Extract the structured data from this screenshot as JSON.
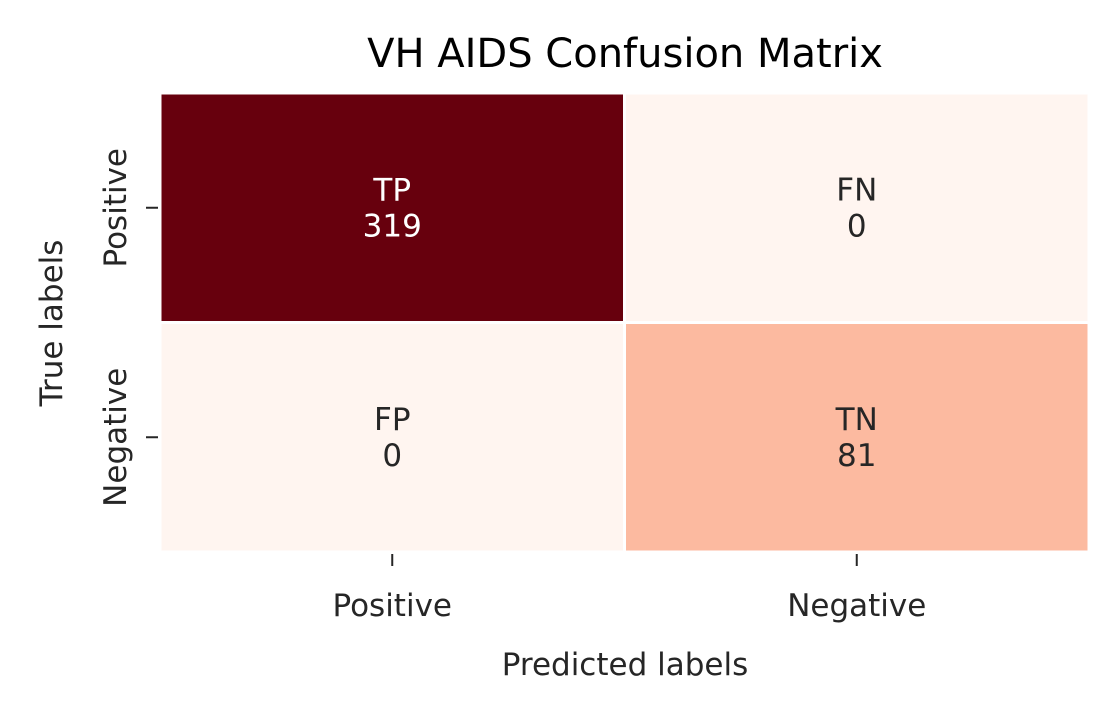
{
  "chart_data": {
    "type": "heatmap",
    "title": "VH AIDS Confusion Matrix",
    "xlabel": "Predicted labels",
    "ylabel": "True labels",
    "x_categories": [
      "Positive",
      "Negative"
    ],
    "y_categories": [
      "Positive",
      "Negative"
    ],
    "cells": [
      [
        {
          "label": "TP",
          "value": 319
        },
        {
          "label": "FN",
          "value": 0
        }
      ],
      [
        {
          "label": "FP",
          "value": 0
        },
        {
          "label": "TN",
          "value": 81
        }
      ]
    ],
    "colormap": "Reds",
    "value_range": [
      0,
      319
    ],
    "colorbar": false
  }
}
